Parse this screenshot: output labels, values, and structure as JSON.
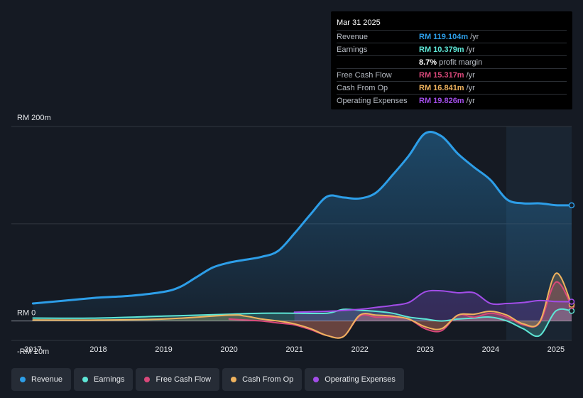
{
  "tooltip": {
    "date": "Mar 31 2025",
    "rows": [
      {
        "key": "Revenue",
        "value": "RM 119.104m",
        "unit": "/yr",
        "color": "#2d9ee8"
      },
      {
        "key": "Earnings",
        "value": "RM 10.379m",
        "unit": "/yr",
        "color": "#5ee6d6"
      },
      {
        "key": "",
        "value": "8.7%",
        "unit": "profit margin",
        "color": "#ffffff"
      },
      {
        "key": "Free Cash Flow",
        "value": "RM 15.317m",
        "unit": "/yr",
        "color": "#d9487a"
      },
      {
        "key": "Cash From Op",
        "value": "RM 16.841m",
        "unit": "/yr",
        "color": "#f0b35e"
      },
      {
        "key": "Operating Expenses",
        "value": "RM 19.826m",
        "unit": "/yr",
        "color": "#a24de8"
      }
    ]
  },
  "legend": [
    {
      "label": "Revenue",
      "color": "#2d9ee8"
    },
    {
      "label": "Earnings",
      "color": "#5ee6d6"
    },
    {
      "label": "Free Cash Flow",
      "color": "#d9487a"
    },
    {
      "label": "Cash From Op",
      "color": "#f0b35e"
    },
    {
      "label": "Operating Expenses",
      "color": "#a24de8"
    }
  ],
  "chart_data": {
    "type": "area",
    "y_tick_labels": [
      "RM 200m",
      "RM 0",
      "-RM 20m"
    ],
    "y_ticks": [
      200,
      0,
      -20
    ],
    "ylim": [
      -20,
      200
    ],
    "x_ticks": [
      2017,
      2018,
      2019,
      2020,
      2021,
      2022,
      2023,
      2024,
      2025
    ],
    "x_tick_labels": [
      "2017",
      "2018",
      "2019",
      "2020",
      "2021",
      "2022",
      "2023",
      "2024",
      "2025"
    ],
    "xlim": [
      2016.67,
      2025.24
    ],
    "grid": true,
    "series": [
      {
        "name": "Revenue",
        "color": "#2d9ee8",
        "fill": true,
        "x": [
          2017.0,
          2017.5,
          2018.0,
          2018.5,
          2019.0,
          2019.25,
          2019.5,
          2019.75,
          2020.0,
          2020.25,
          2020.5,
          2020.75,
          2021.0,
          2021.25,
          2021.5,
          2021.75,
          2022.0,
          2022.25,
          2022.5,
          2022.75,
          2023.0,
          2023.25,
          2023.5,
          2023.75,
          2024.0,
          2024.25,
          2024.5,
          2024.75,
          2025.0,
          2025.24
        ],
        "y": [
          18,
          21,
          24,
          26,
          30,
          35,
          45,
          55,
          60,
          63,
          66,
          72,
          90,
          110,
          128,
          127,
          126,
          132,
          150,
          170,
          193,
          190,
          172,
          158,
          145,
          125,
          121,
          121,
          119.1,
          119
        ]
      },
      {
        "name": "Earnings",
        "color": "#5ee6d6",
        "fill": true,
        "x": [
          2017.0,
          2018.0,
          2019.0,
          2020.0,
          2020.5,
          2021.0,
          2021.5,
          2021.75,
          2022.0,
          2022.25,
          2022.5,
          2022.75,
          2023.0,
          2023.25,
          2023.5,
          2023.75,
          2024.0,
          2024.25,
          2024.5,
          2024.75,
          2025.0,
          2025.24
        ],
        "y": [
          3,
          3,
          5,
          7,
          8,
          8,
          8,
          12,
          11,
          10,
          8,
          4,
          2,
          0,
          2,
          3,
          4,
          0,
          -8,
          -15,
          10.4,
          10.4
        ]
      },
      {
        "name": "Free Cash Flow",
        "color": "#d9487a",
        "fill": true,
        "x": [
          2020.0,
          2020.25,
          2020.5,
          2020.75,
          2021.0,
          2021.25,
          2021.5,
          2021.75,
          2022.0,
          2022.25,
          2022.5,
          2022.75,
          2023.0,
          2023.25,
          2023.5,
          2023.75,
          2024.0,
          2024.25,
          2024.5,
          2024.75,
          2025.0,
          2025.24
        ],
        "y": [
          2,
          1,
          0,
          -2,
          -4,
          -9,
          -15,
          -16,
          5,
          4,
          4,
          2,
          -8,
          -10,
          6,
          4,
          8,
          4,
          -4,
          -2,
          40,
          15.3
        ]
      },
      {
        "name": "Cash From Op",
        "color": "#f0b35e",
        "fill": true,
        "x": [
          2017.0,
          2018.0,
          2019.0,
          2020.0,
          2020.25,
          2020.5,
          2020.75,
          2021.0,
          2021.25,
          2021.5,
          2021.75,
          2022.0,
          2022.25,
          2022.5,
          2022.75,
          2023.0,
          2023.25,
          2023.5,
          2023.75,
          2024.0,
          2024.25,
          2024.5,
          2024.75,
          2025.0,
          2025.24
        ],
        "y": [
          1,
          1,
          2,
          6,
          5,
          2,
          0,
          -3,
          -8,
          -15,
          -16,
          6,
          6,
          5,
          2,
          -6,
          -8,
          6,
          7,
          10,
          6,
          -3,
          -1,
          49,
          16.8
        ]
      },
      {
        "name": "Operating Expenses",
        "color": "#a24de8",
        "fill": true,
        "x": [
          2021.0,
          2021.5,
          2022.0,
          2022.25,
          2022.5,
          2022.75,
          2023.0,
          2023.25,
          2023.5,
          2023.75,
          2024.0,
          2024.25,
          2024.5,
          2024.75,
          2025.0,
          2025.24
        ],
        "y": [
          9,
          10,
          12,
          14,
          16,
          19,
          30,
          31,
          29,
          29,
          18,
          18,
          19,
          21,
          20,
          19.8
        ]
      }
    ]
  }
}
